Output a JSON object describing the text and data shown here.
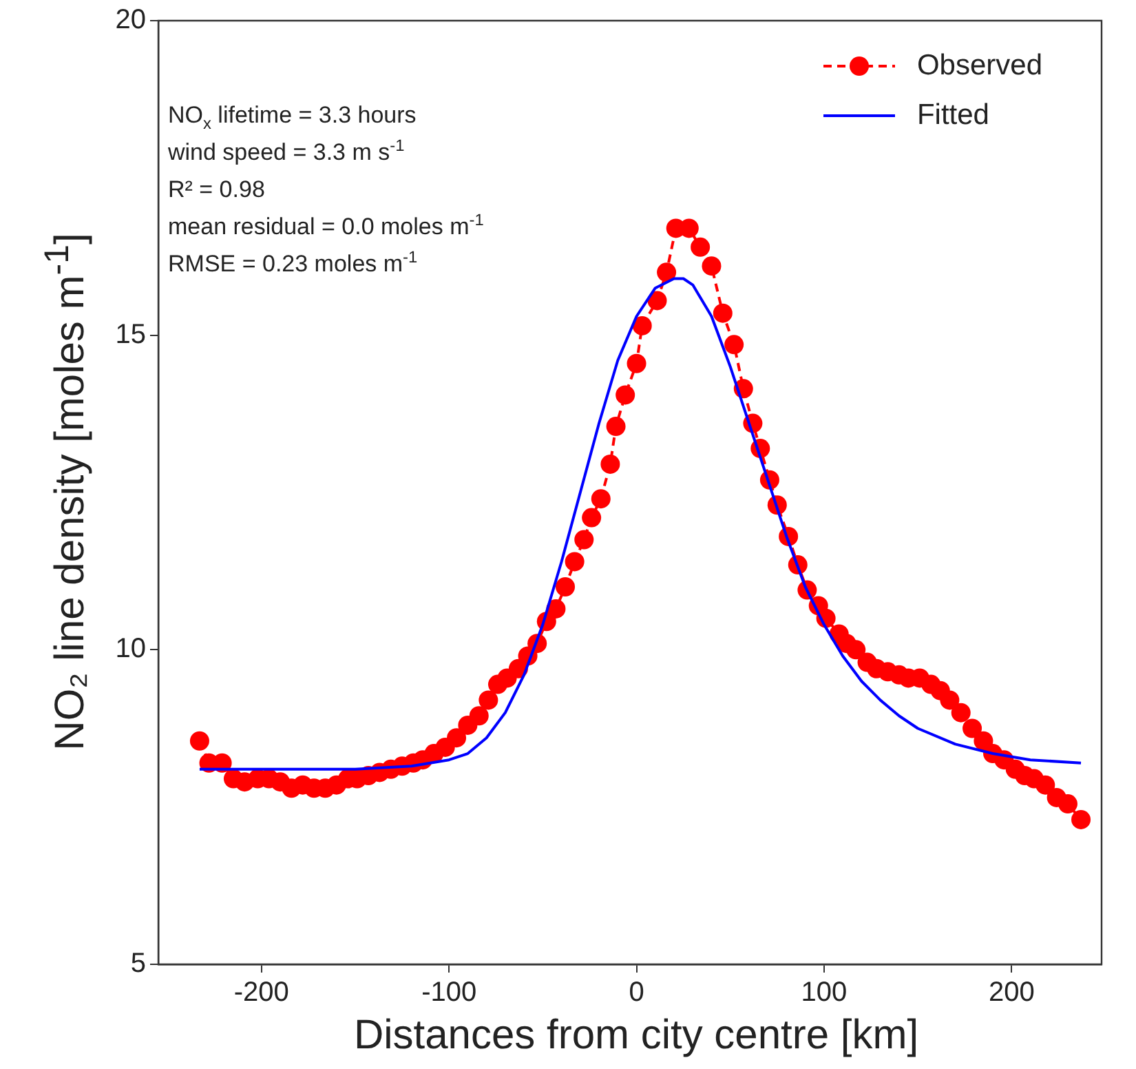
{
  "chart_data": {
    "type": "line",
    "xlabel": "Distances from city centre [km]",
    "ylabel": "NO₂ line density [moles m$^{-1}$]",
    "xlim": [
      -255,
      248
    ],
    "xticks": [
      -200,
      -100,
      0,
      100,
      200
    ],
    "ylim": [
      5,
      20
    ],
    "yticks": [
      5,
      10,
      15,
      20
    ],
    "grid": false,
    "legend": "top right",
    "annotations": [
      "NO$_{x}$ lifetime = 3.3 hours",
      "wind speed = 3.3 m s$^{-1}$",
      "R² = 0.98",
      "mean residual = 0.0 moles m$^{-1}$",
      "RMSE = 0.23 moles m$^{-1}$"
    ],
    "series": [
      {
        "name": "Observed",
        "type": "line",
        "color": "#ff0000",
        "marker": "circle",
        "line_style": "dashed",
        "x": [
          -233,
          -228,
          -221,
          -215,
          -209,
          -202,
          -196,
          -190,
          -184,
          -178,
          -172,
          -166,
          -160,
          -154,
          -149,
          -143,
          -137,
          -131,
          -125,
          -119,
          -114,
          -108,
          -102,
          -96,
          -90,
          -84,
          -79,
          -74,
          -69,
          -63,
          -58,
          -53,
          -48,
          -43,
          -38,
          -33,
          -28,
          -24,
          -19,
          -14,
          -11,
          -6,
          0,
          3,
          11,
          16,
          21,
          28,
          34,
          40,
          46,
          52,
          57,
          62,
          66,
          71,
          75,
          81,
          86,
          91,
          97,
          101,
          108,
          112,
          117,
          123,
          128,
          134,
          140,
          145,
          151,
          157,
          162,
          167,
          173,
          179,
          185,
          190,
          196,
          202,
          207,
          212,
          218,
          224,
          230,
          237
        ],
        "values": [
          8.55,
          8.2,
          8.2,
          7.95,
          7.9,
          7.95,
          7.95,
          7.9,
          7.8,
          7.85,
          7.8,
          7.8,
          7.85,
          7.95,
          7.95,
          8.0,
          8.05,
          8.1,
          8.15,
          8.2,
          8.25,
          8.35,
          8.45,
          8.6,
          8.8,
          8.95,
          9.2,
          9.45,
          9.55,
          9.7,
          9.9,
          10.1,
          10.45,
          10.65,
          11.0,
          11.4,
          11.75,
          12.1,
          12.4,
          12.95,
          13.55,
          14.05,
          14.55,
          15.15,
          15.55,
          16.0,
          16.7,
          16.7,
          16.4,
          16.1,
          15.35,
          14.85,
          14.15,
          13.6,
          13.2,
          12.7,
          12.3,
          11.8,
          11.35,
          10.95,
          10.7,
          10.5,
          10.25,
          10.1,
          10.0,
          9.8,
          9.7,
          9.65,
          9.6,
          9.55,
          9.55,
          9.45,
          9.35,
          9.2,
          9.0,
          8.75,
          8.55,
          8.35,
          8.25,
          8.1,
          8.0,
          7.95,
          7.85,
          7.65,
          7.55,
          7.3
        ]
      },
      {
        "name": "Fitted",
        "type": "line",
        "color": "#0000ff",
        "marker": "none",
        "line_style": "solid",
        "x": [
          -233,
          -200,
          -150,
          -120,
          -100,
          -90,
          -80,
          -70,
          -60,
          -50,
          -40,
          -30,
          -20,
          -10,
          0,
          10,
          20,
          25,
          30,
          40,
          50,
          60,
          70,
          80,
          90,
          100,
          110,
          120,
          130,
          140,
          150,
          170,
          190,
          210,
          237
        ],
        "values": [
          8.1,
          8.1,
          8.1,
          8.15,
          8.25,
          8.35,
          8.6,
          9.0,
          9.6,
          10.4,
          11.4,
          12.5,
          13.6,
          14.6,
          15.3,
          15.75,
          15.9,
          15.9,
          15.8,
          15.3,
          14.5,
          13.6,
          12.7,
          11.8,
          11.0,
          10.4,
          9.9,
          9.5,
          9.2,
          8.95,
          8.75,
          8.5,
          8.35,
          8.25,
          8.2
        ]
      }
    ]
  }
}
